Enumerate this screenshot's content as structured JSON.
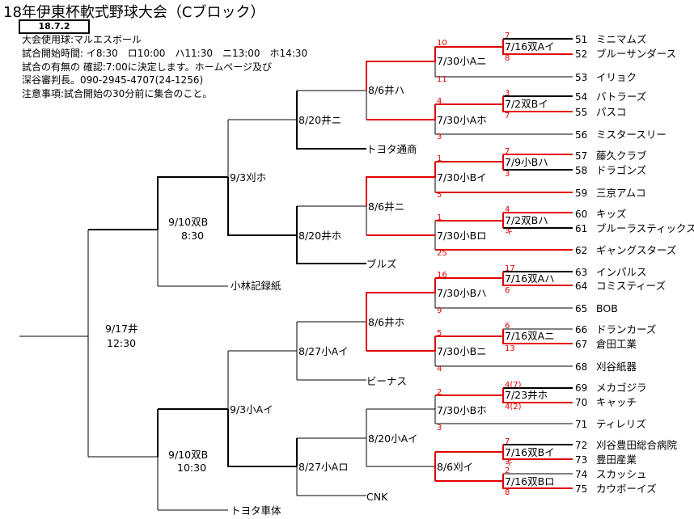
{
  "header": {
    "title": "18年伊東杯軟式野球大会（Cブロック）",
    "date": "18.7.2"
  },
  "info": [
    "大会使用球:マルエスボール",
    "試合開始時間: イ8:30　ロ10:00　ハ11:30　ニ13:00　ホ14:30",
    "試合の有無の 確認:7:00に決定します。ホームページ及び",
    "深谷審判長。090-2945-4707(24-1256)",
    "注意事項:試合開始の30分前に集合のこと。"
  ],
  "teams": [
    {
      "seed": "51",
      "name": "ミニマムズ"
    },
    {
      "seed": "52",
      "name": "ブルーサンダース"
    },
    {
      "seed": "53",
      "name": "イリョク"
    },
    {
      "seed": "54",
      "name": "バトラーズ"
    },
    {
      "seed": "55",
      "name": "パスコ"
    },
    {
      "seed": "56",
      "name": "ミスタースリー"
    },
    {
      "seed": "57",
      "name": "藤久クラブ"
    },
    {
      "seed": "58",
      "name": "ドラゴンズ"
    },
    {
      "seed": "59",
      "name": "三京アムコ"
    },
    {
      "seed": "60",
      "name": "キッズ"
    },
    {
      "seed": "61",
      "name": "ブルーラスティックス"
    },
    {
      "seed": "62",
      "name": "ギャングスターズ"
    },
    {
      "seed": "63",
      "name": "インパルス"
    },
    {
      "seed": "64",
      "name": "コミスティーズ"
    },
    {
      "seed": "65",
      "name": "BOB"
    },
    {
      "seed": "66",
      "name": "ドランカーズ"
    },
    {
      "seed": "67",
      "name": "倉田工業"
    },
    {
      "seed": "68",
      "name": "刈谷紙器"
    },
    {
      "seed": "69",
      "name": "メカゴジラ"
    },
    {
      "seed": "70",
      "name": "キャッチ"
    },
    {
      "seed": "71",
      "name": "ティレリズ"
    },
    {
      "seed": "72",
      "name": "刈谷豊田総合病院"
    },
    {
      "seed": "73",
      "name": "豊田産業"
    },
    {
      "seed": "74",
      "name": "スカッシュ"
    },
    {
      "seed": "75",
      "name": "カウボーイズ"
    }
  ],
  "seeded_teams": [
    "トヨタ通商",
    "ブルズ",
    "小林記録紙",
    "ビーナス",
    "CNK",
    "トヨタ車体"
  ],
  "matches": {
    "r1_a": "7/16双Aイ",
    "r1_b": "7/2双Bイ",
    "r1_c": "7/9小Bハ",
    "r1_d": "7/2双Bハ",
    "r1_e": "7/16双Aハ",
    "r1_f": "7/16双Aニ",
    "r1_g": "7/23井ホ",
    "r1_h": "7/16双Bイ",
    "r1_i": "7/16双Bロ",
    "r2_a": "7/30小Aニ",
    "r2_b": "7/30小Aホ",
    "r2_c": "7/30小Bイ",
    "r2_d": "7/30小Bロ",
    "r2_e": "7/30小Bハ",
    "r2_f": "7/30小Bニ",
    "r2_g": "7/30小Bホ",
    "r2_h": "8/6刈イ",
    "r3_a": "8/6井ハ",
    "r3_b": "8/6井ニ",
    "r3_c": "8/6井ホ",
    "r3_d": "8/20小Aイ",
    "r4_a": "8/20井ニ",
    "r4_b": "8/20井ホ",
    "r4_c": "8/27小Aイ",
    "r4_d": "8/27小Aロ",
    "r5_a": "9/3刈ホ",
    "r5_b": "9/3小Aイ",
    "sf_a": "9/10双B",
    "sf_a_time": "8:30",
    "sf_b": "9/10双B",
    "sf_b_time": "10:30",
    "final": "9/17井",
    "final_time": "12:30"
  },
  "scores": {
    "s1": "10",
    "s2": "11",
    "s3": "4",
    "s4": "3",
    "s5": "1",
    "s6": "5",
    "s7": "1",
    "s8": "25",
    "s9": "16",
    "s10": "9",
    "s11": "5",
    "s12": "4",
    "s13": "2",
    "s14": "3",
    "t1": "7",
    "t2": "8",
    "t3": "3",
    "t4": "7",
    "t5": "7",
    "t6": "3",
    "t7": "4",
    "t8": "キ",
    "t9": "17",
    "t10": "6",
    "t11": "6",
    "t12": "13",
    "t13": "4(7)",
    "t14": "4(2)",
    "t15": "7",
    "t16": "キ",
    "t17": "2",
    "t18": "8"
  },
  "colors": {
    "win": "#e00000",
    "line": "#000000"
  }
}
